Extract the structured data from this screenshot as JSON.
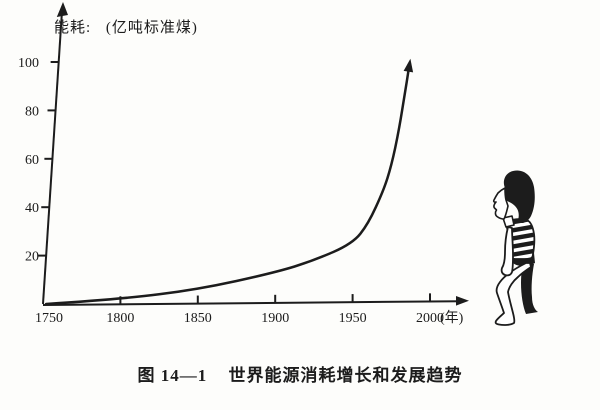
{
  "colors": {
    "ink": "#1c1c1c",
    "paper": "#fdfdfb"
  },
  "axis_label": {
    "prefix": "能耗:",
    "unit": "(亿吨标准煤)"
  },
  "x_unit": "(年)",
  "caption": {
    "figure_no": "图 14—1",
    "title": "世界能源消耗增长和发展趋势"
  },
  "decoration": {
    "figure": "child-looking-up-at-curve"
  },
  "chart_data": {
    "type": "line",
    "title": "图 14—1 世界能源消耗增长和发展趋势",
    "ylabel": "能耗: (亿吨标准煤)",
    "xlabel": "年",
    "x_ticks": [
      1750,
      1800,
      1850,
      1900,
      1950,
      2000
    ],
    "y_ticks": [
      20,
      40,
      60,
      80,
      100
    ],
    "xlim": [
      1750,
      2025
    ],
    "ylim": [
      0,
      112
    ],
    "grid": false,
    "legend": "none",
    "arrow_at_end": true,
    "series": [
      {
        "name": "世界能源消耗",
        "points": [
          [
            1752,
            0
          ],
          [
            1800,
            2
          ],
          [
            1850,
            6
          ],
          [
            1900,
            13
          ],
          [
            1925,
            18
          ],
          [
            1950,
            25
          ],
          [
            1960,
            33
          ],
          [
            1970,
            47
          ],
          [
            1975,
            57
          ],
          [
            1980,
            72
          ],
          [
            1984,
            88
          ],
          [
            1986,
            96
          ]
        ]
      }
    ]
  }
}
